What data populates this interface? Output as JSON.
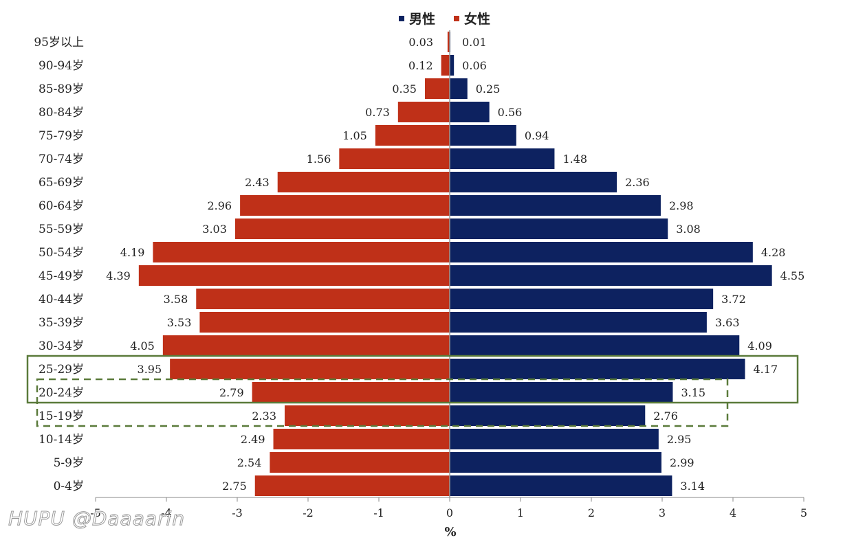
{
  "chart_data": {
    "type": "bar",
    "orientation": "horizontal-diverging",
    "title": "",
    "xlabel": "%",
    "ylabel": "",
    "xlim": [
      -5,
      5
    ],
    "xticks": [
      -5,
      -4,
      -3,
      -2,
      -1,
      0,
      1,
      2,
      3,
      4,
      5
    ],
    "xtick_labels": [
      "-5",
      "-4",
      "-3",
      "-2",
      "-1",
      "0",
      "1",
      "2",
      "3",
      "4",
      "5"
    ],
    "legend_position": "top-center",
    "categories": [
      "0-4岁",
      "5-9岁",
      "10-14岁",
      "15-19岁",
      "20-24岁",
      "25-29岁",
      "30-34岁",
      "35-39岁",
      "40-44岁",
      "45-49岁",
      "50-54岁",
      "55-59岁",
      "60-64岁",
      "65-69岁",
      "70-74岁",
      "75-79岁",
      "80-84岁",
      "85-89岁",
      "90-94岁",
      "95岁以上"
    ],
    "series": [
      {
        "name": "男性",
        "color": "#0d2260",
        "side": "right",
        "values": [
          3.14,
          2.99,
          2.95,
          2.76,
          3.15,
          4.17,
          4.09,
          3.63,
          3.72,
          4.55,
          4.28,
          3.08,
          2.98,
          2.36,
          1.48,
          0.94,
          0.56,
          0.25,
          0.06,
          0.01
        ],
        "labels": [
          "3.14",
          "2.99",
          "2.95",
          "2.76",
          "3.15",
          "4.17",
          "4.09",
          "3.63",
          "3.72",
          "4.55",
          "4.28",
          "3.08",
          "2.98",
          "2.36",
          "1.48",
          "0.94",
          "0.56",
          "0.25",
          "0.06",
          "0.01"
        ]
      },
      {
        "name": "女性",
        "color": "#bf3018",
        "side": "left",
        "values": [
          2.75,
          2.54,
          2.49,
          2.33,
          2.79,
          3.95,
          4.05,
          3.53,
          3.58,
          4.39,
          4.19,
          3.03,
          2.96,
          2.43,
          1.56,
          1.05,
          0.73,
          0.35,
          0.12,
          0.03
        ],
        "labels": [
          "2.75",
          "2.54",
          "2.49",
          "2.33",
          "2.79",
          "3.95",
          "4.05",
          "3.53",
          "3.58",
          "4.39",
          "4.19",
          "3.03",
          "2.96",
          "2.43",
          "1.56",
          "1.05",
          "0.73",
          "0.35",
          "0.12",
          "0.03"
        ]
      }
    ],
    "highlights": [
      {
        "style": "solid",
        "color": "#5a7a3a",
        "categories": [
          "20-24岁",
          "25-29岁"
        ]
      },
      {
        "style": "dashed",
        "color": "#5a7a3a",
        "categories": [
          "15-19岁",
          "20-24岁"
        ]
      }
    ]
  },
  "watermark": {
    "text": "HUPU @Daaaarin"
  }
}
